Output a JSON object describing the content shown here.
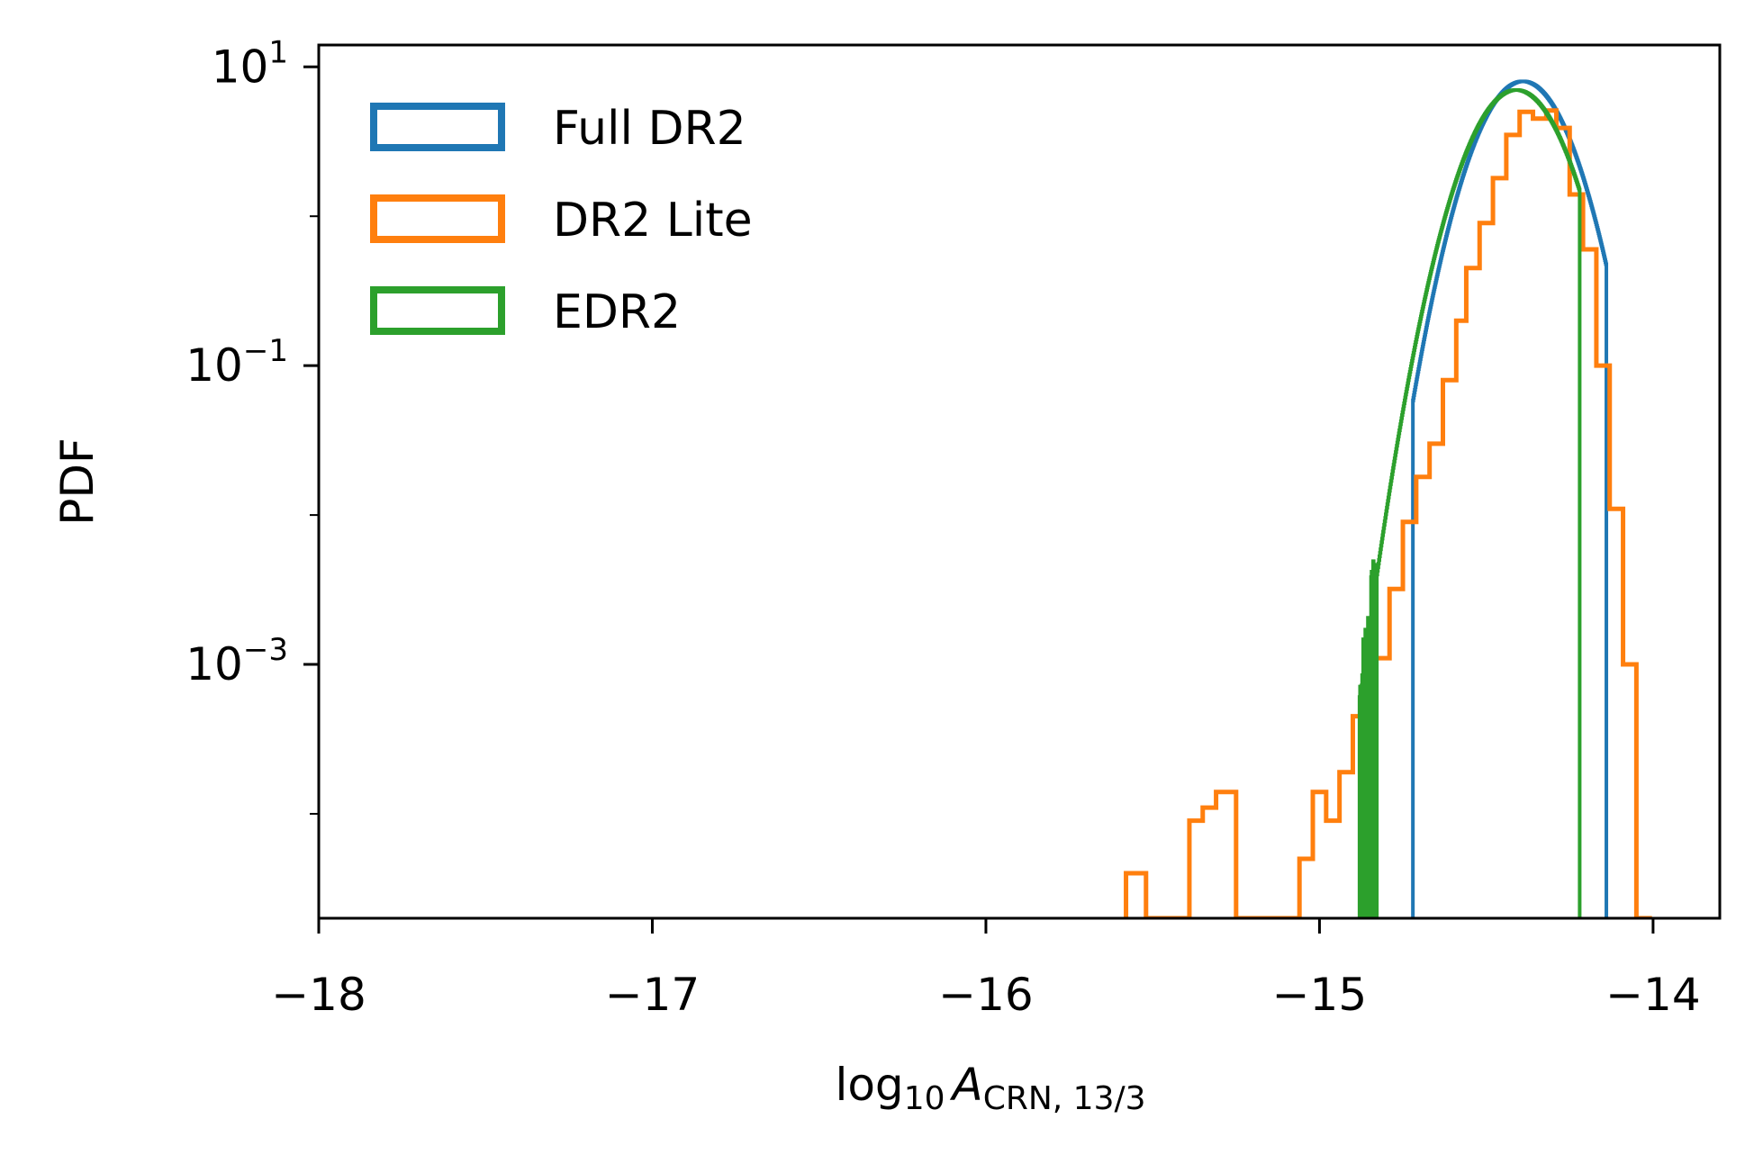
{
  "chart_data": {
    "type": "histogram",
    "xlabel": {
      "base": "log",
      "sub1": "10",
      "var": "A",
      "sub2": "CRN, 13/3"
    },
    "ylabel": "PDF",
    "xlim": [
      -18,
      -13.8
    ],
    "ylim": [
      2e-05,
      14
    ],
    "yscale": "log",
    "xticks": [
      {
        "value": -18,
        "label": "−18"
      },
      {
        "value": -17,
        "label": "−17"
      },
      {
        "value": -16,
        "label": "−16"
      },
      {
        "value": -15,
        "label": "−15"
      },
      {
        "value": -14,
        "label": "−14"
      }
    ],
    "yticks": [
      {
        "value": 10,
        "base": "10",
        "exp": "1"
      },
      {
        "value": 0.1,
        "base": "10",
        "exp": "−1"
      },
      {
        "value": 0.001,
        "base": "10",
        "exp": "−3"
      }
    ],
    "legend_position": "top-left",
    "series": [
      {
        "name": "Full DR2",
        "color": "#1f77b4",
        "style": "step",
        "peak": -14.39,
        "sigma": 0.105,
        "peak_density": 8.0,
        "range": [
          -14.72,
          -14.14
        ]
      },
      {
        "name": "DR2 Lite",
        "color": "#ff7f0e",
        "style": "step",
        "edges": [
          -15.58,
          -15.52,
          -15.39,
          -15.35,
          -15.31,
          -15.25,
          -15.06,
          -15.02,
          -14.98,
          -14.94,
          -14.9,
          -14.86,
          -14.83,
          -14.79,
          -14.75,
          -14.71,
          -14.67,
          -14.63,
          -14.59,
          -14.56,
          -14.52,
          -14.48,
          -14.44,
          -14.4,
          -14.36,
          -14.32,
          -14.29,
          -14.25,
          -14.21,
          -14.17,
          -14.13,
          -14.09,
          -14.05,
          -14.01
        ],
        "values": [
          4e-05,
          2e-05,
          9e-05,
          0.00011,
          0.00014,
          2e-05,
          5e-05,
          0.00014,
          9e-05,
          0.00019,
          0.00045,
          0.00065,
          0.0011,
          0.0032,
          0.009,
          0.018,
          0.03,
          0.08,
          0.2,
          0.45,
          0.9,
          1.8,
          3.5,
          5.0,
          4.5,
          5.1,
          3.9,
          1.4,
          0.6,
          0.1,
          0.011,
          0.001,
          2e-05
        ]
      },
      {
        "name": "EDR2",
        "color": "#2ca02c",
        "style": "step",
        "peak": -14.41,
        "sigma": 0.108,
        "peak_density": 7.0,
        "range": [
          -14.88,
          -14.22
        ]
      }
    ]
  }
}
